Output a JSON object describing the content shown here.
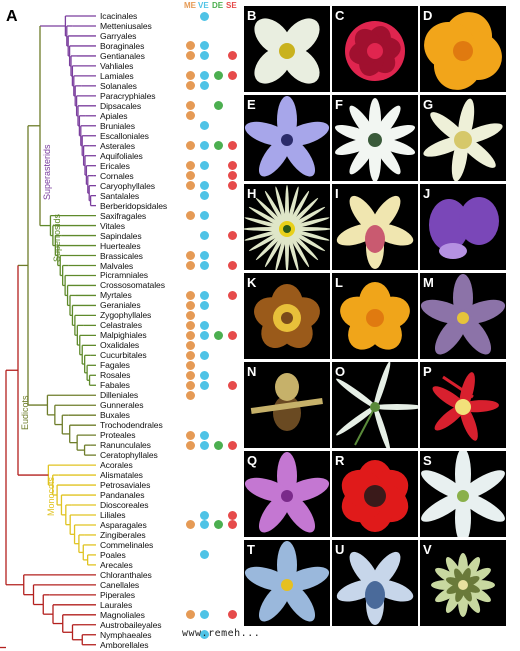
{
  "figure_label": "A",
  "colors": {
    "superasterids": "#7b3f9e",
    "superrosids": "#5f8a2b",
    "eudicots": "#6e7d2a",
    "monocots": "#e0c321",
    "basal": "#b3201e",
    "ME": "#e59a55",
    "VE": "#4fc3e6",
    "DE": "#4caf50",
    "SE": "#e64b4b"
  },
  "columns": [
    {
      "key": "ME",
      "label": "ME"
    },
    {
      "key": "VE",
      "label": "VE"
    },
    {
      "key": "DE",
      "label": "DE"
    },
    {
      "key": "SE",
      "label": "SE"
    }
  ],
  "clades": {
    "superasterids": "Superasterids",
    "superrosids": "Superrosids",
    "eudicots": "Eudicots",
    "monocots": "Monocots"
  },
  "orders": [
    {
      "name": "Icacinales",
      "group": "superasterids",
      "cols": [
        "VE"
      ]
    },
    {
      "name": "Metteniusales",
      "group": "superasterids",
      "cols": []
    },
    {
      "name": "Garryales",
      "group": "superasterids",
      "cols": []
    },
    {
      "name": "Boraginales",
      "group": "superasterids",
      "cols": [
        "ME",
        "VE"
      ]
    },
    {
      "name": "Gentianales",
      "group": "superasterids",
      "cols": [
        "ME",
        "VE",
        "SE"
      ]
    },
    {
      "name": "Vahliales",
      "group": "superasterids",
      "cols": []
    },
    {
      "name": "Lamiales",
      "group": "superasterids",
      "cols": [
        "ME",
        "VE",
        "DE",
        "SE"
      ]
    },
    {
      "name": "Solanales",
      "group": "superasterids",
      "cols": [
        "ME",
        "VE"
      ]
    },
    {
      "name": "Paracryphiales",
      "group": "superasterids",
      "cols": []
    },
    {
      "name": "Dipsacales",
      "group": "superasterids",
      "cols": [
        "ME",
        "DE"
      ]
    },
    {
      "name": "Apiales",
      "group": "superasterids",
      "cols": [
        "ME"
      ]
    },
    {
      "name": "Bruniales",
      "group": "superasterids",
      "cols": [
        "VE"
      ]
    },
    {
      "name": "Escalloniales",
      "group": "superasterids",
      "cols": []
    },
    {
      "name": "Asterales",
      "group": "superasterids",
      "cols": [
        "ME",
        "VE",
        "DE",
        "SE"
      ]
    },
    {
      "name": "Aquifoliales",
      "group": "superasterids",
      "cols": []
    },
    {
      "name": "Ericales",
      "group": "superasterids",
      "cols": [
        "ME",
        "VE",
        "SE"
      ]
    },
    {
      "name": "Cornales",
      "group": "superasterids",
      "cols": [
        "ME",
        "SE"
      ]
    },
    {
      "name": "Caryophyllales",
      "group": "superasterids",
      "cols": [
        "ME",
        "VE",
        "SE"
      ]
    },
    {
      "name": "Santalales",
      "group": "superasterids",
      "cols": [
        "VE"
      ]
    },
    {
      "name": "Berberidopsidales",
      "group": "superasterids",
      "cols": []
    },
    {
      "name": "Saxifragales",
      "group": "superrosids",
      "cols": [
        "ME",
        "VE"
      ]
    },
    {
      "name": "Vitales",
      "group": "superrosids",
      "cols": []
    },
    {
      "name": "Sapindales",
      "group": "superrosids",
      "cols": [
        "VE",
        "SE"
      ]
    },
    {
      "name": "Huerteales",
      "group": "superrosids",
      "cols": []
    },
    {
      "name": "Brassicales",
      "group": "superrosids",
      "cols": [
        "ME",
        "VE"
      ]
    },
    {
      "name": "Malvales",
      "group": "superrosids",
      "cols": [
        "ME",
        "VE",
        "SE"
      ]
    },
    {
      "name": "Picramniales",
      "group": "superrosids",
      "cols": []
    },
    {
      "name": "Crossosomatales",
      "group": "superrosids",
      "cols": []
    },
    {
      "name": "Myrtales",
      "group": "superrosids",
      "cols": [
        "ME",
        "VE",
        "SE"
      ]
    },
    {
      "name": "Geraniales",
      "group": "superrosids",
      "cols": [
        "ME",
        "VE"
      ]
    },
    {
      "name": "Zygophyllales",
      "group": "superrosids",
      "cols": [
        "ME"
      ]
    },
    {
      "name": "Celastrales",
      "group": "superrosids",
      "cols": [
        "ME",
        "VE"
      ]
    },
    {
      "name": "Malpighiales",
      "group": "superrosids",
      "cols": [
        "ME",
        "VE",
        "DE",
        "SE"
      ]
    },
    {
      "name": "Oxalidales",
      "group": "superrosids",
      "cols": [
        "ME"
      ]
    },
    {
      "name": "Cucurbitales",
      "group": "superrosids",
      "cols": [
        "ME",
        "VE"
      ]
    },
    {
      "name": "Fagales",
      "group": "superrosids",
      "cols": [
        "ME"
      ]
    },
    {
      "name": "Rosales",
      "group": "superrosids",
      "cols": [
        "ME",
        "VE"
      ]
    },
    {
      "name": "Fabales",
      "group": "superrosids",
      "cols": [
        "ME",
        "VE",
        "SE"
      ]
    },
    {
      "name": "Dilleniales",
      "group": "eudicots",
      "cols": [
        "ME"
      ]
    },
    {
      "name": "Gunnerales",
      "group": "eudicots",
      "cols": []
    },
    {
      "name": "Buxales",
      "group": "eudicots",
      "cols": []
    },
    {
      "name": "Trochodendrales",
      "group": "eudicots",
      "cols": []
    },
    {
      "name": "Proteales",
      "group": "eudicots",
      "cols": [
        "ME",
        "VE"
      ]
    },
    {
      "name": "Ranunculales",
      "group": "eudicots",
      "cols": [
        "ME",
        "VE",
        "DE",
        "SE"
      ]
    },
    {
      "name": "Ceratophyllales",
      "group": "eudicots",
      "cols": []
    },
    {
      "name": "Acorales",
      "group": "monocots",
      "cols": []
    },
    {
      "name": "Alismatales",
      "group": "monocots",
      "cols": []
    },
    {
      "name": "Petrosaviales",
      "group": "monocots",
      "cols": []
    },
    {
      "name": "Pandanales",
      "group": "monocots",
      "cols": []
    },
    {
      "name": "Dioscoreales",
      "group": "monocots",
      "cols": []
    },
    {
      "name": "Liliales",
      "group": "monocots",
      "cols": [
        "VE",
        "SE"
      ]
    },
    {
      "name": "Asparagales",
      "group": "monocots",
      "cols": [
        "ME",
        "VE",
        "DE",
        "SE"
      ]
    },
    {
      "name": "Zingiberales",
      "group": "monocots",
      "cols": []
    },
    {
      "name": "Commelinales",
      "group": "monocots",
      "cols": []
    },
    {
      "name": "Poales",
      "group": "monocots",
      "cols": [
        "VE"
      ]
    },
    {
      "name": "Arecales",
      "group": "monocots",
      "cols": []
    },
    {
      "name": "Chloranthales",
      "group": "basal",
      "cols": []
    },
    {
      "name": "Canellales",
      "group": "basal",
      "cols": []
    },
    {
      "name": "Piperales",
      "group": "basal",
      "cols": []
    },
    {
      "name": "Laurales",
      "group": "basal",
      "cols": []
    },
    {
      "name": "Magnoliales",
      "group": "basal",
      "cols": [
        "ME",
        "VE",
        "SE"
      ]
    },
    {
      "name": "Austrobaileyales",
      "group": "basal",
      "cols": []
    },
    {
      "name": "Nymphaeales",
      "group": "basal",
      "cols": [
        "VE"
      ]
    },
    {
      "name": "Amborellales",
      "group": "basal",
      "cols": []
    }
  ],
  "panels": [
    {
      "label": "B",
      "petal": "#e9eee0",
      "center": "#c9b21e",
      "shape": "cross"
    },
    {
      "label": "C",
      "petal": "#e0254f",
      "center": "#a0102f",
      "shape": "rose"
    },
    {
      "label": "D",
      "petal": "#f2a51a",
      "center": "#e07a10",
      "shape": "poppy"
    },
    {
      "label": "E",
      "petal": "#a7a6ea",
      "center": "#2b2b6a",
      "shape": "star5"
    },
    {
      "label": "F",
      "petal": "#f2f6f2",
      "center": "#3a5a3a",
      "shape": "star10"
    },
    {
      "label": "G",
      "petal": "#eef0d8",
      "center": "#d6c86a",
      "shape": "fringe"
    },
    {
      "label": "H",
      "petal": "#dfe6c8",
      "center": "#e8d01a",
      "shape": "passion"
    },
    {
      "label": "I",
      "petal": "#f0e6b0",
      "center": "#c95a70",
      "shape": "orchid"
    },
    {
      "label": "J",
      "petal": "#7a47b8",
      "center": "#b591e2",
      "shape": "wing"
    },
    {
      "label": "K",
      "petal": "#9a5a1a",
      "center": "#e8c03a",
      "shape": "cup"
    },
    {
      "label": "L",
      "petal": "#f0a51a",
      "center": "#e07a10",
      "shape": "buttercup"
    },
    {
      "label": "M",
      "petal": "#8c73a8",
      "center": "#e6c33a",
      "shape": "star5"
    },
    {
      "label": "N",
      "petal": "#6a4a22",
      "center": "#c6b16a",
      "shape": "slipper"
    },
    {
      "label": "O",
      "petal": "#e6efe6",
      "center": "#5a8a3a",
      "shape": "spider"
    },
    {
      "label": "P",
      "petal": "#d8202e",
      "center": "#f2e07a",
      "shape": "columbine"
    },
    {
      "label": "Q",
      "petal": "#c477d2",
      "center": "#7a2a8a",
      "shape": "star5"
    },
    {
      "label": "R",
      "petal": "#e01a1a",
      "center": "#3a1a1a",
      "shape": "anemone"
    },
    {
      "label": "S",
      "petal": "#e8f0f0",
      "center": "#8ab04a",
      "shape": "star6"
    },
    {
      "label": "T",
      "petal": "#9ab8dc",
      "center": "#e6c020",
      "shape": "star5"
    },
    {
      "label": "U",
      "petal": "#c7d6ea",
      "center": "#4a6a9a",
      "shape": "orchid"
    },
    {
      "label": "V",
      "petal": "#c8d8a0",
      "center": "#6a7a3a",
      "shape": "cluster"
    }
  ],
  "watermark": "www.remeh..."
}
